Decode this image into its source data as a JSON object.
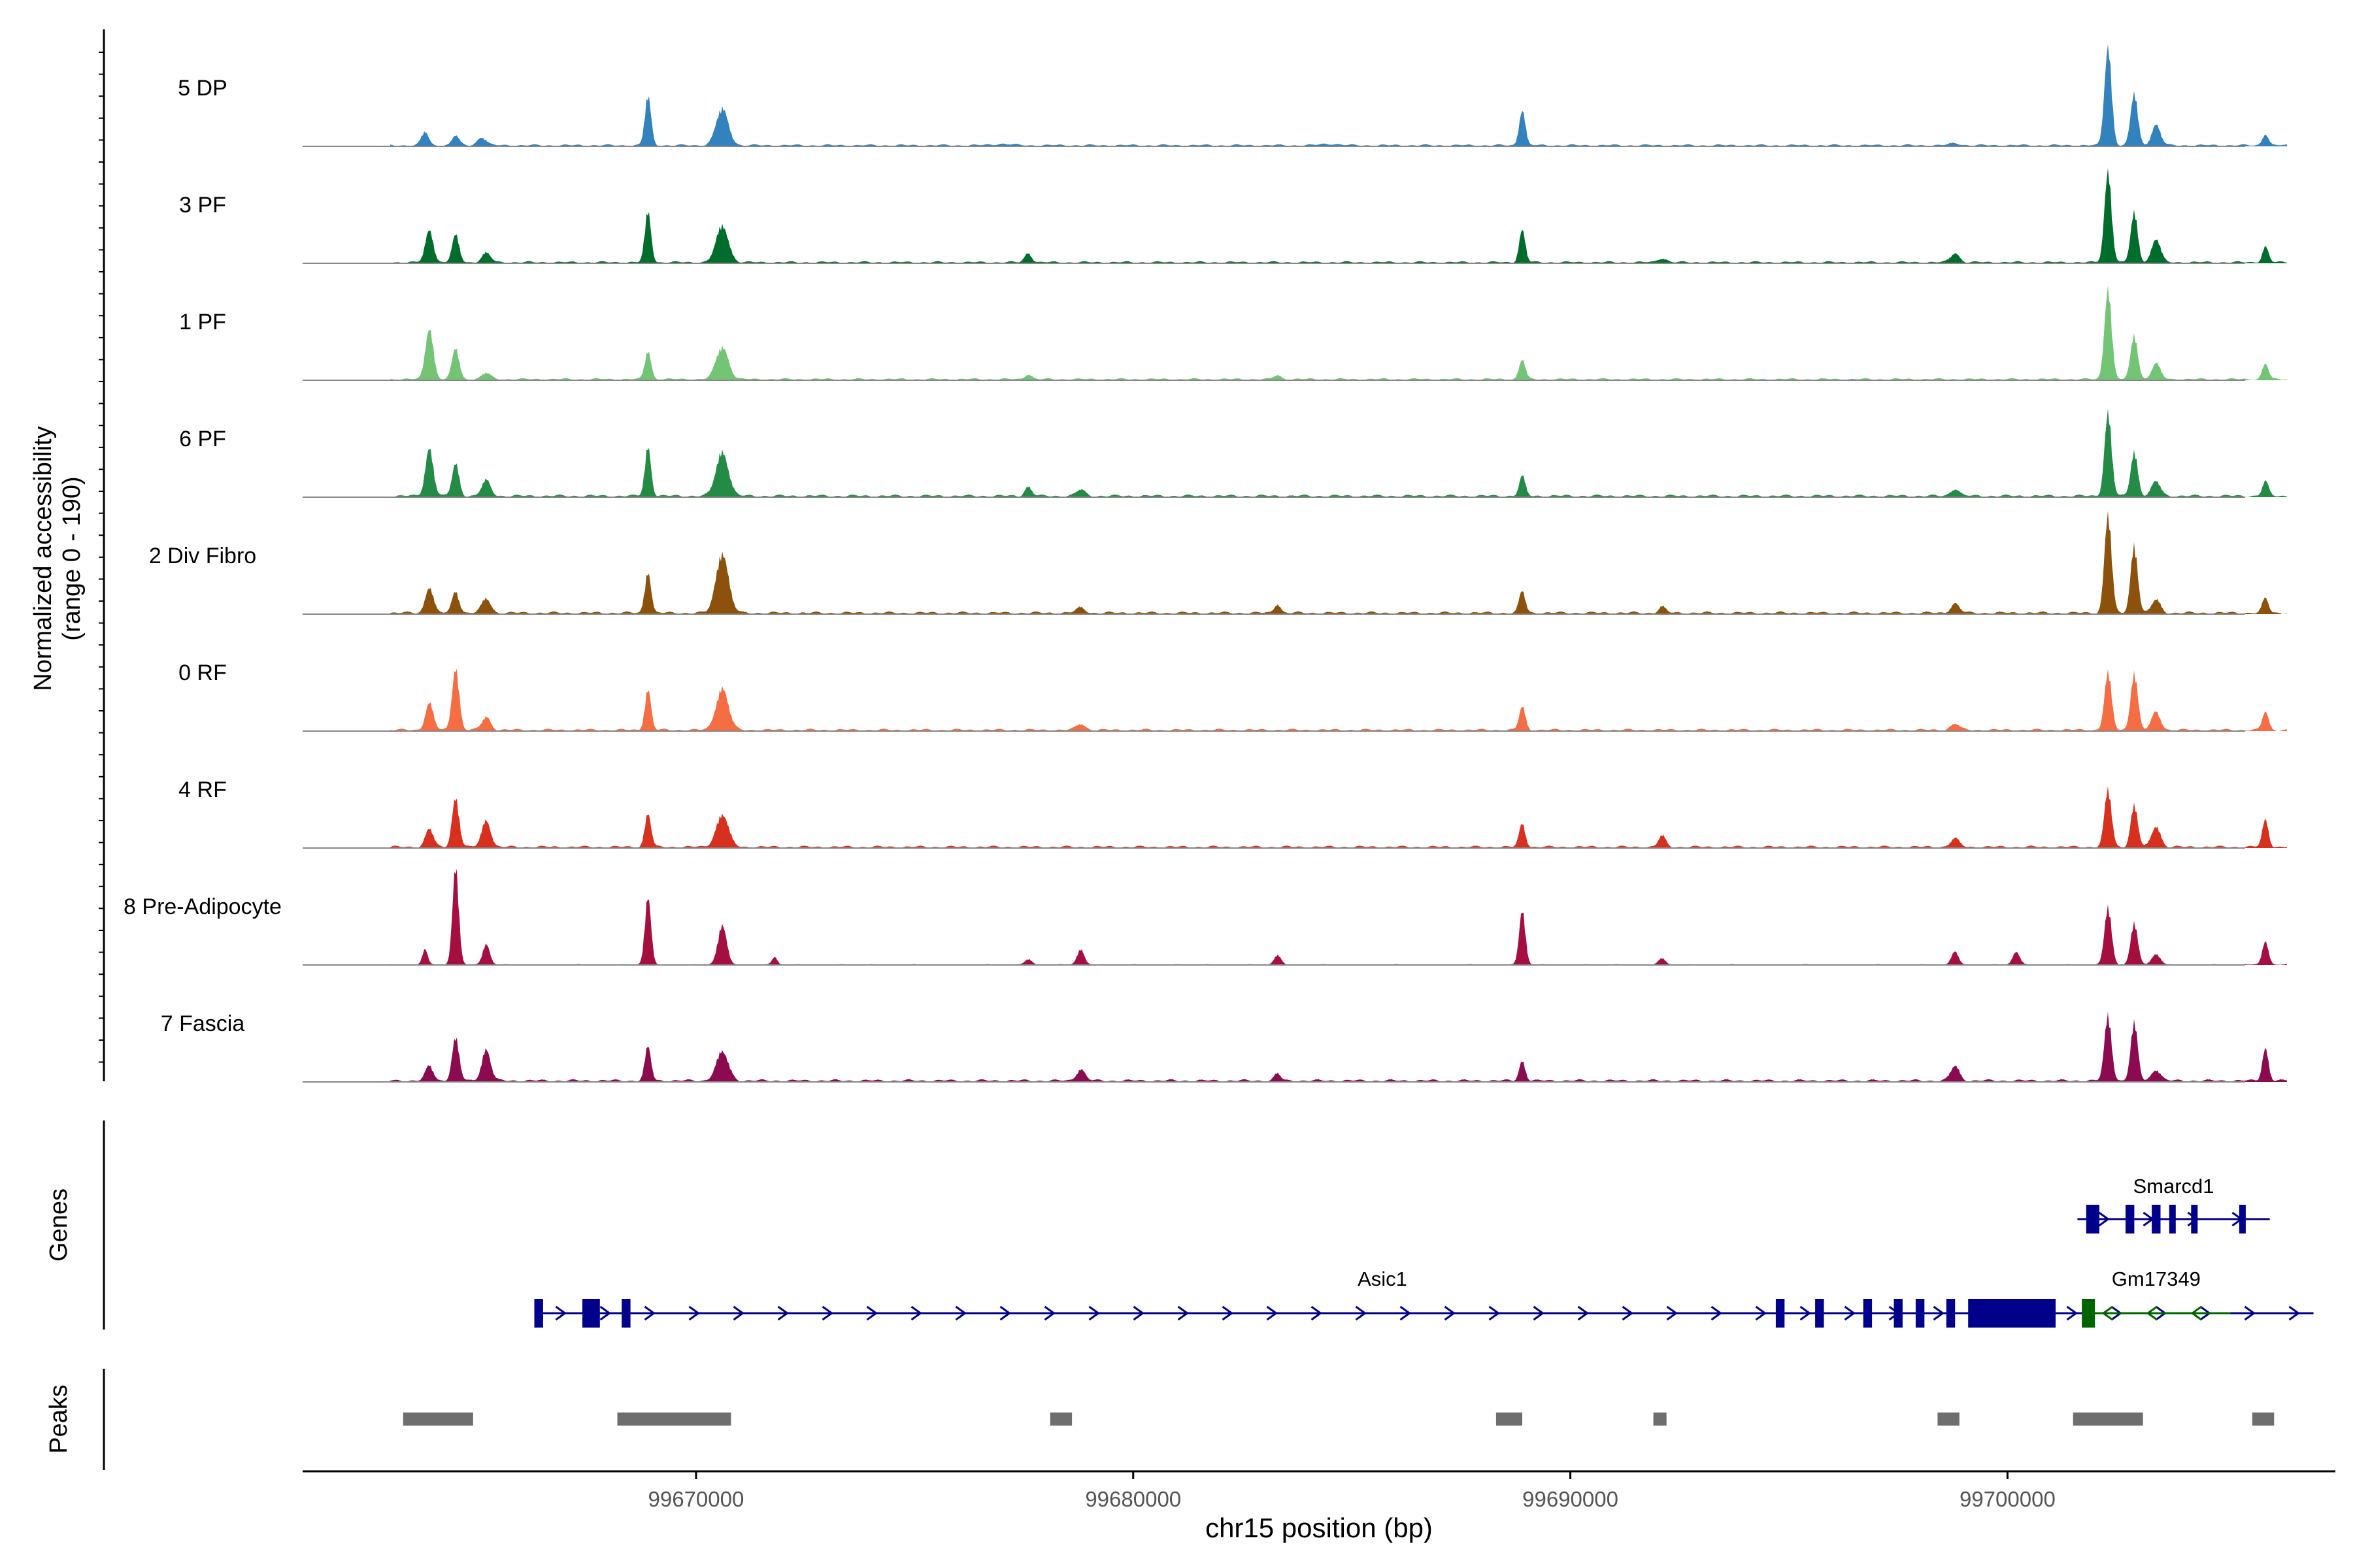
{
  "chart_data": {
    "type": "area",
    "title": "",
    "ylabel_line1": "Normalized accessibility",
    "ylabel_line2": "(range 0 - 190)",
    "xlabel": "chr15 position (bp)",
    "xlim": [
      99661000,
      99707500
    ],
    "x_ticks": [
      99670000,
      99680000,
      99690000,
      99700000
    ],
    "x_tick_labels": [
      "99670000",
      "99680000",
      "99690000",
      "99700000"
    ],
    "ylim": [
      0,
      190
    ],
    "tracks": [
      {
        "name": "5 DP",
        "color": "#3182BD",
        "noise": 0.8,
        "peaks": [
          [
            99663800,
            26,
            80
          ],
          [
            99664500,
            19,
            80
          ],
          [
            99665100,
            16,
            100
          ],
          [
            99668900,
            95,
            70
          ],
          [
            99670600,
            70,
            140
          ],
          [
            99677000,
            3,
            200
          ],
          [
            99684500,
            3,
            200
          ],
          [
            99688900,
            68,
            70
          ],
          [
            99698800,
            4,
            120
          ],
          [
            99702300,
            190,
            80
          ],
          [
            99702900,
            100,
            80
          ],
          [
            99703400,
            40,
            100
          ],
          [
            99705900,
            22,
            70
          ]
        ]
      },
      {
        "name": "3 PF",
        "color": "#006D2C",
        "noise": 0.8,
        "peaks": [
          [
            99663900,
            62,
            90
          ],
          [
            99664500,
            52,
            80
          ],
          [
            99665200,
            18,
            100
          ],
          [
            99668900,
            98,
            70
          ],
          [
            99670600,
            70,
            140
          ],
          [
            99677600,
            18,
            80
          ],
          [
            99688900,
            62,
            70
          ],
          [
            99692100,
            8,
            100
          ],
          [
            99698800,
            18,
            100
          ],
          [
            99702300,
            175,
            80
          ],
          [
            99702900,
            95,
            80
          ],
          [
            99703400,
            45,
            100
          ],
          [
            99705900,
            30,
            70
          ]
        ]
      },
      {
        "name": "1 PF",
        "color": "#74C476",
        "noise": 0.8,
        "peaks": [
          [
            99663900,
            98,
            90
          ],
          [
            99664500,
            60,
            80
          ],
          [
            99665200,
            12,
            100
          ],
          [
            99668900,
            55,
            70
          ],
          [
            99670600,
            62,
            140
          ],
          [
            99677600,
            10,
            80
          ],
          [
            99683300,
            8,
            80
          ],
          [
            99688900,
            38,
            70
          ],
          [
            99702300,
            175,
            80
          ],
          [
            99702900,
            85,
            80
          ],
          [
            99703400,
            30,
            100
          ],
          [
            99705900,
            30,
            70
          ]
        ]
      },
      {
        "name": "6 PF",
        "color": "#238B45",
        "noise": 1.0,
        "peaks": [
          [
            99663900,
            92,
            90
          ],
          [
            99664500,
            62,
            80
          ],
          [
            99665200,
            30,
            100
          ],
          [
            99668900,
            95,
            70
          ],
          [
            99670600,
            85,
            140
          ],
          [
            99677600,
            18,
            80
          ],
          [
            99678800,
            12,
            100
          ],
          [
            99688900,
            38,
            70
          ],
          [
            99698800,
            14,
            100
          ],
          [
            99702300,
            160,
            80
          ],
          [
            99702900,
            85,
            80
          ],
          [
            99703400,
            28,
            100
          ],
          [
            99705900,
            28,
            70
          ]
        ]
      },
      {
        "name": "2 Div Fibro",
        "color": "#8C510A",
        "noise": 1.0,
        "peaks": [
          [
            99663900,
            50,
            90
          ],
          [
            99664500,
            42,
            80
          ],
          [
            99665200,
            28,
            100
          ],
          [
            99668900,
            80,
            70
          ],
          [
            99670600,
            115,
            140
          ],
          [
            99678800,
            10,
            100
          ],
          [
            99683300,
            18,
            70
          ],
          [
            99688900,
            42,
            70
          ],
          [
            99692100,
            12,
            80
          ],
          [
            99698800,
            18,
            100
          ],
          [
            99702300,
            190,
            80
          ],
          [
            99702900,
            130,
            80
          ],
          [
            99703400,
            25,
            100
          ],
          [
            99705900,
            28,
            70
          ]
        ]
      },
      {
        "name": "0 RF",
        "color": "#F46D43",
        "noise": 0.9,
        "peaks": [
          [
            99663900,
            52,
            90
          ],
          [
            99664500,
            120,
            80
          ],
          [
            99665200,
            25,
            100
          ],
          [
            99668900,
            78,
            70
          ],
          [
            99670600,
            80,
            140
          ],
          [
            99678800,
            12,
            100
          ],
          [
            99688900,
            45,
            70
          ],
          [
            99698800,
            12,
            100
          ],
          [
            99702300,
            110,
            80
          ],
          [
            99702900,
            110,
            80
          ],
          [
            99703400,
            35,
            100
          ],
          [
            99705900,
            35,
            70
          ]
        ]
      },
      {
        "name": "4 RF",
        "color": "#D7301F",
        "noise": 0.9,
        "peaks": [
          [
            99663900,
            35,
            90
          ],
          [
            99664500,
            95,
            80
          ],
          [
            99665200,
            52,
            100
          ],
          [
            99668900,
            65,
            70
          ],
          [
            99670600,
            62,
            140
          ],
          [
            99688900,
            45,
            70
          ],
          [
            99692100,
            22,
            80
          ],
          [
            99698800,
            16,
            100
          ],
          [
            99702300,
            110,
            80
          ],
          [
            99702900,
            80,
            80
          ],
          [
            99703400,
            40,
            100
          ],
          [
            99705900,
            52,
            70
          ]
        ]
      },
      {
        "name": "8 Pre-Adipocyte",
        "color": "#A50F3F",
        "noise": 0.3,
        "peaks": [
          [
            99663800,
            30,
            60
          ],
          [
            99664500,
            190,
            70
          ],
          [
            99665200,
            40,
            80
          ],
          [
            99668900,
            130,
            70
          ],
          [
            99670600,
            75,
            100
          ],
          [
            99671800,
            15,
            60
          ],
          [
            99677600,
            10,
            80
          ],
          [
            99678800,
            30,
            80
          ],
          [
            99683300,
            18,
            80
          ],
          [
            99688900,
            105,
            70
          ],
          [
            99692100,
            12,
            80
          ],
          [
            99698800,
            25,
            80
          ],
          [
            99700200,
            25,
            80
          ],
          [
            99702300,
            110,
            80
          ],
          [
            99702900,
            80,
            80
          ],
          [
            99703400,
            20,
            100
          ],
          [
            99705900,
            45,
            70
          ]
        ]
      },
      {
        "name": "7 Fascia",
        "color": "#8B0A50",
        "noise": 1.0,
        "peaks": [
          [
            99663900,
            28,
            90
          ],
          [
            99664500,
            82,
            80
          ],
          [
            99665200,
            60,
            100
          ],
          [
            99668900,
            65,
            70
          ],
          [
            99670600,
            55,
            140
          ],
          [
            99678800,
            22,
            100
          ],
          [
            99683300,
            14,
            70
          ],
          [
            99688900,
            38,
            70
          ],
          [
            99698800,
            28,
            100
          ],
          [
            99702300,
            125,
            80
          ],
          [
            99702900,
            110,
            80
          ],
          [
            99703400,
            22,
            100
          ],
          [
            99705900,
            62,
            70
          ]
        ]
      }
    ],
    "genes_label": "Genes",
    "genes": [
      {
        "name": "Asic1",
        "start": 99666300,
        "end": 99707000,
        "strand": "+",
        "color": "#00008B",
        "exons": [
          [
            99666300,
            99666500
          ],
          [
            99667400,
            99667800
          ],
          [
            99668300,
            99668500
          ],
          [
            99694700,
            99694900
          ],
          [
            99695600,
            99695800
          ],
          [
            99696700,
            99696900
          ],
          [
            99697400,
            99697600
          ],
          [
            99697900,
            99698100
          ],
          [
            99698600,
            99698800
          ],
          [
            99699100,
            99701100
          ]
        ]
      },
      {
        "name": "Smarcd1",
        "start": 99701600,
        "end": 99706000,
        "strand": "+",
        "color": "#00008B",
        "exons": [
          [
            99701800,
            99702100
          ],
          [
            99702700,
            99702900
          ],
          [
            99703300,
            99703500
          ],
          [
            99703700,
            99703800
          ],
          [
            99704200,
            99704300
          ],
          [
            99705300,
            99705400
          ]
        ]
      },
      {
        "name": "Gm17349",
        "start": 99701700,
        "end": 99705100,
        "strand": "-",
        "color": "#006400",
        "exons": [
          [
            99701700,
            99702000
          ]
        ]
      }
    ],
    "peaks_label": "Peaks",
    "peaks_color": "#6E6E6E",
    "peak_regions": [
      [
        99663300,
        99664900
      ],
      [
        99668200,
        99670800
      ],
      [
        99678100,
        99678600
      ],
      [
        99688300,
        99688900
      ],
      [
        99691900,
        99692200
      ],
      [
        99698400,
        99698900
      ],
      [
        99701500,
        99703100
      ],
      [
        99705600,
        99706100
      ]
    ]
  }
}
